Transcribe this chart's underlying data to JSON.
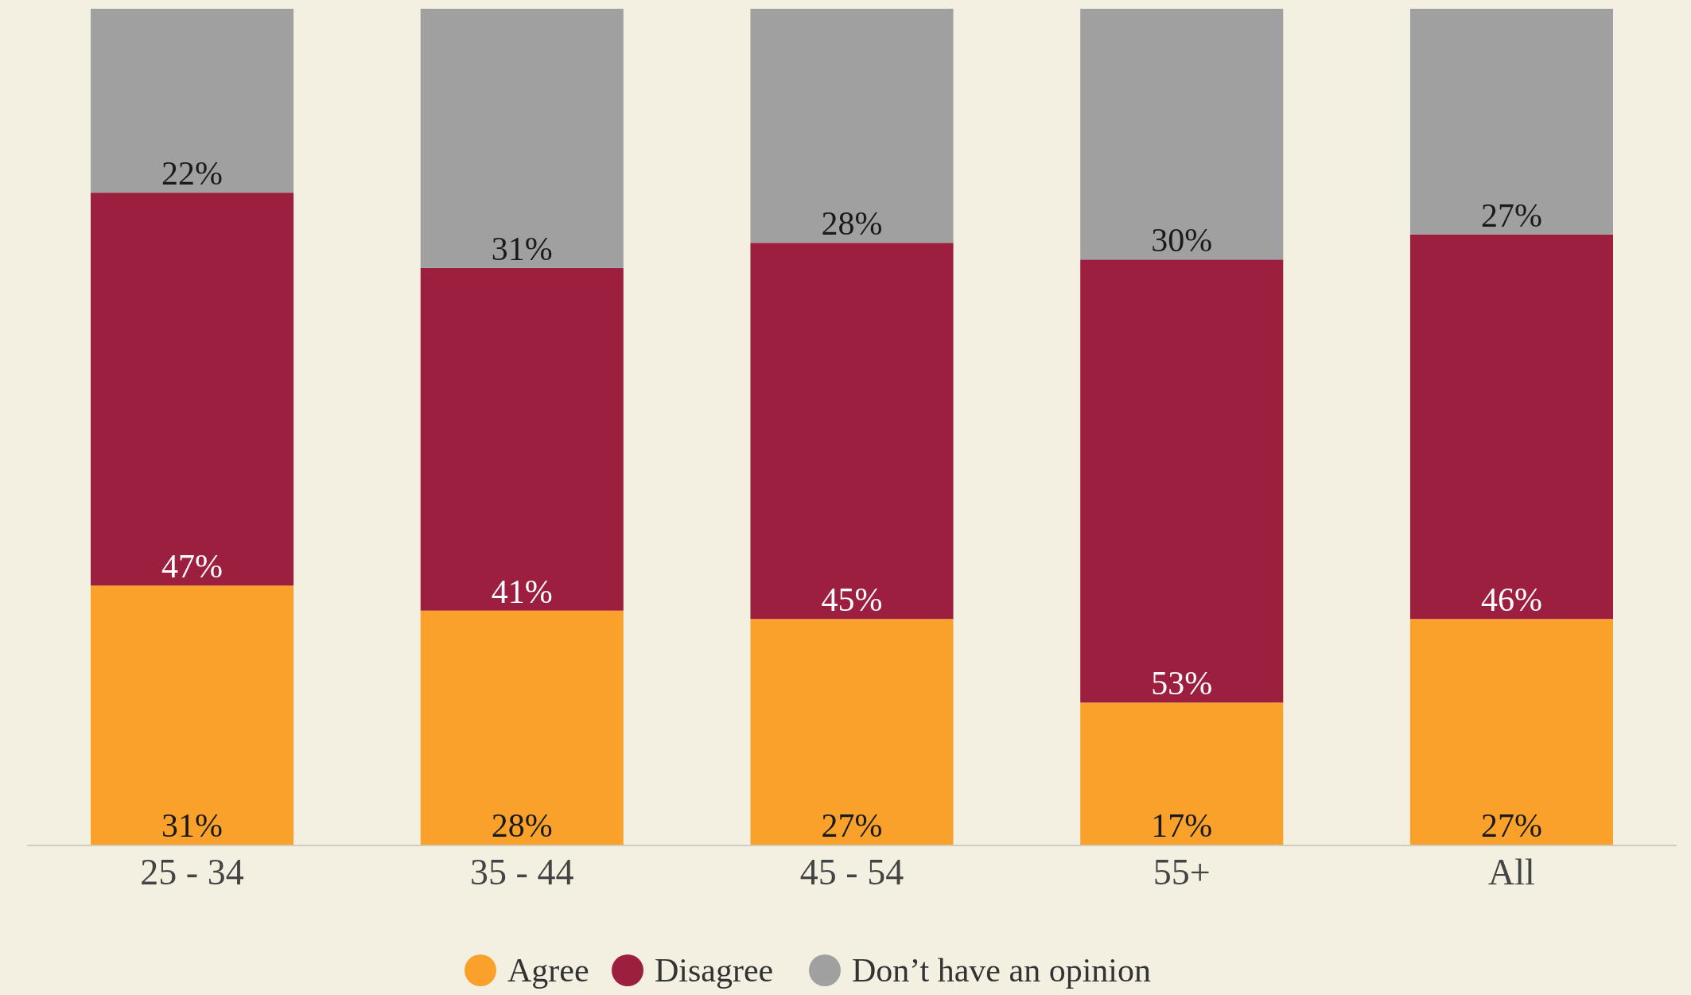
{
  "chart_data": {
    "type": "bar",
    "stacked": true,
    "legend": "bottom",
    "categories": [
      "25 - 34",
      "35 - 44",
      "45 - 54",
      "55+",
      "All"
    ],
    "series": [
      {
        "name": "Agree",
        "color": "#f9a12a",
        "values": [
          31,
          28,
          27,
          17,
          27
        ],
        "value_labels": [
          "31%",
          "28%",
          "27%",
          "17%",
          "27%"
        ]
      },
      {
        "name": "Disagree",
        "color": "#9c1f40",
        "values": [
          47,
          41,
          45,
          53,
          46
        ],
        "value_labels": [
          "47%",
          "41%",
          "45%",
          "53%",
          "46%"
        ]
      },
      {
        "name": "Don’t have an opinion",
        "color": "#a0a0a0",
        "values": [
          22,
          31,
          28,
          30,
          27
        ],
        "value_labels": [
          "22%",
          "31%",
          "28%",
          "30%",
          "27%"
        ]
      }
    ]
  }
}
